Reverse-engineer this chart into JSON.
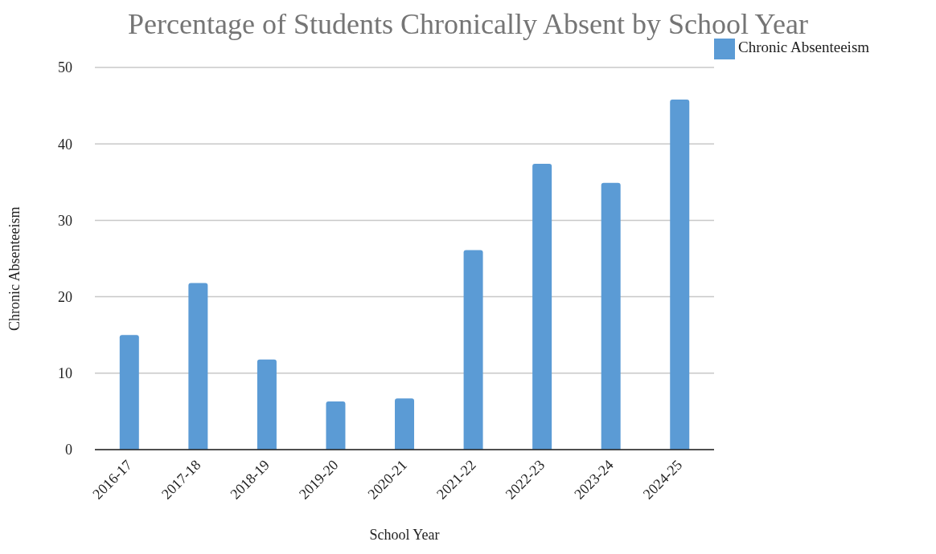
{
  "chart_data": {
    "type": "bar",
    "title": "Percentage of Students Chronically Absent by School Year",
    "xlabel": "School Year",
    "ylabel": "Chronic Absenteeism",
    "categories": [
      "2016-17",
      "2017-18",
      "2018-19",
      "2019-20",
      "2020-21",
      "2021-22",
      "2022-23",
      "2023-24",
      "2024-25"
    ],
    "series": [
      {
        "name": "Chronic Absenteeism",
        "color": "#5b9bd5",
        "values": [
          15.0,
          21.8,
          11.8,
          6.3,
          6.7,
          26.1,
          37.4,
          34.9,
          45.8
        ]
      }
    ],
    "ylim": [
      0,
      50
    ],
    "yticks": [
      0,
      10,
      20,
      30,
      40,
      50
    ],
    "grid": "y",
    "legend": "top right"
  }
}
